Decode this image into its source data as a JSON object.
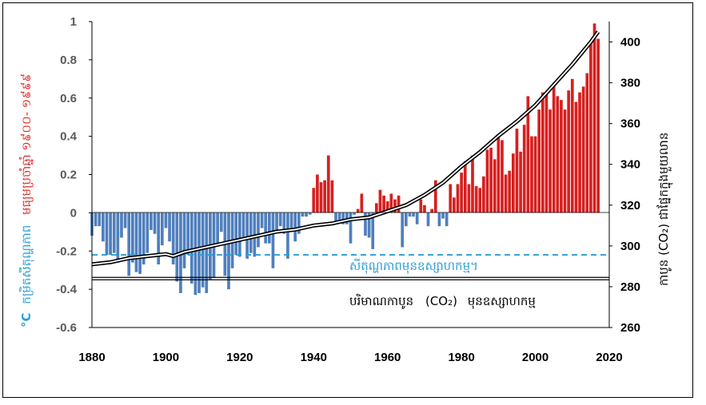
{
  "chart_data": {
    "type": "bar",
    "colors": {
      "warm": "#d62020",
      "cool": "#4f7fbd",
      "co2": "#000000",
      "pre_industrial_temp": "#2a9fd6"
    },
    "x_ticks": [
      "1880",
      "1900",
      "1920",
      "1940",
      "1960",
      "1980",
      "2000",
      "2020"
    ],
    "xlim": [
      1880,
      2020
    ],
    "y_left": {
      "label_part1": "°C",
      "label_part2": "កម្រិតសីតុណ្ហភាព",
      "label_part3": "មធ្យមប្រចាំឆ្នាំ ១៩០០- ១៩៩៩",
      "ylim": [
        -0.6,
        1.0
      ],
      "ticks": [
        "-0.6",
        "-0.4",
        "-0.2",
        "0",
        "0.2",
        "0.4",
        "0.6",
        "0.8",
        "1"
      ]
    },
    "y_right": {
      "label": "កាបូន (CO₂) ជាផ្នែកក្នុងមួយលាន",
      "ylim": [
        260,
        410
      ],
      "ticks": [
        "260",
        "280",
        "300",
        "320",
        "340",
        "360",
        "380",
        "400"
      ]
    },
    "series": [
      {
        "name": "temperature_anomaly",
        "years": [
          1880,
          1881,
          1882,
          1883,
          1884,
          1885,
          1886,
          1887,
          1888,
          1889,
          1890,
          1891,
          1892,
          1893,
          1894,
          1895,
          1896,
          1897,
          1898,
          1899,
          1900,
          1901,
          1902,
          1903,
          1904,
          1905,
          1906,
          1907,
          1908,
          1909,
          1910,
          1911,
          1912,
          1913,
          1914,
          1915,
          1916,
          1917,
          1918,
          1919,
          1920,
          1921,
          1922,
          1923,
          1924,
          1925,
          1926,
          1927,
          1928,
          1929,
          1930,
          1931,
          1932,
          1933,
          1934,
          1935,
          1936,
          1937,
          1938,
          1939,
          1940,
          1941,
          1942,
          1943,
          1944,
          1945,
          1946,
          1947,
          1948,
          1949,
          1950,
          1951,
          1952,
          1953,
          1954,
          1955,
          1956,
          1957,
          1958,
          1959,
          1960,
          1961,
          1962,
          1963,
          1964,
          1965,
          1966,
          1967,
          1968,
          1969,
          1970,
          1971,
          1972,
          1973,
          1974,
          1975,
          1976,
          1977,
          1978,
          1979,
          1980,
          1981,
          1982,
          1983,
          1984,
          1985,
          1986,
          1987,
          1988,
          1989,
          1990,
          1991,
          1992,
          1993,
          1994,
          1995,
          1996,
          1997,
          1998,
          1999,
          2000,
          2001,
          2002,
          2003,
          2004,
          2005,
          2006,
          2007,
          2008,
          2009,
          2010,
          2011,
          2012,
          2013,
          2014,
          2015,
          2016,
          2017
        ],
        "values": [
          -0.12,
          -0.07,
          -0.07,
          -0.15,
          -0.22,
          -0.22,
          -0.21,
          -0.26,
          -0.13,
          -0.08,
          -0.33,
          -0.26,
          -0.31,
          -0.32,
          -0.27,
          -0.21,
          -0.09,
          -0.11,
          -0.27,
          -0.17,
          -0.08,
          -0.15,
          -0.27,
          -0.36,
          -0.42,
          -0.29,
          -0.22,
          -0.37,
          -0.43,
          -0.42,
          -0.39,
          -0.42,
          -0.35,
          -0.34,
          -0.16,
          -0.1,
          -0.33,
          -0.4,
          -0.29,
          -0.22,
          -0.23,
          -0.14,
          -0.24,
          -0.21,
          -0.23,
          -0.18,
          -0.08,
          -0.16,
          -0.16,
          -0.29,
          -0.09,
          -0.07,
          -0.11,
          -0.24,
          -0.1,
          -0.15,
          -0.11,
          -0.02,
          -0.02,
          -0.01,
          0.13,
          0.2,
          0.16,
          0.17,
          0.3,
          0.17,
          -0.05,
          -0.05,
          -0.06,
          -0.06,
          -0.16,
          -0.01,
          0.02,
          0.1,
          -0.12,
          -0.13,
          -0.19,
          0.05,
          0.12,
          0.09,
          0.06,
          0.1,
          0.07,
          0.09,
          -0.18,
          -0.07,
          -0.02,
          -0.02,
          -0.06,
          0.07,
          0.04,
          -0.07,
          0.02,
          0.17,
          -0.07,
          -0.03,
          -0.07,
          0.15,
          0.08,
          0.15,
          0.21,
          0.27,
          0.15,
          0.3,
          0.14,
          0.13,
          0.19,
          0.33,
          0.34,
          0.28,
          0.4,
          0.38,
          0.2,
          0.22,
          0.31,
          0.44,
          0.32,
          0.46,
          0.61,
          0.4,
          0.4,
          0.54,
          0.63,
          0.62,
          0.54,
          0.68,
          0.61,
          0.59,
          0.54,
          0.64,
          0.7,
          0.58,
          0.63,
          0.66,
          0.73,
          0.89,
          0.99,
          0.91
        ]
      },
      {
        "name": "co2_ppm",
        "points": [
          [
            1880,
            291
          ],
          [
            1885,
            292
          ],
          [
            1890,
            294
          ],
          [
            1895,
            295
          ],
          [
            1900,
            296
          ],
          [
            1902,
            295
          ],
          [
            1905,
            297
          ],
          [
            1910,
            299
          ],
          [
            1915,
            301
          ],
          [
            1920,
            303
          ],
          [
            1925,
            305
          ],
          [
            1930,
            307
          ],
          [
            1935,
            308
          ],
          [
            1940,
            310
          ],
          [
            1945,
            311
          ],
          [
            1950,
            313
          ],
          [
            1955,
            314
          ],
          [
            1960,
            317
          ],
          [
            1965,
            320
          ],
          [
            1970,
            325
          ],
          [
            1975,
            331
          ],
          [
            1980,
            339
          ],
          [
            1985,
            346
          ],
          [
            1990,
            354
          ],
          [
            1995,
            361
          ],
          [
            2000,
            369
          ],
          [
            2005,
            379
          ],
          [
            2010,
            389
          ],
          [
            2015,
            400
          ],
          [
            2017,
            405
          ]
        ]
      },
      {
        "name": "pre_industrial_temp",
        "value": -0.22,
        "label": "សីតុណ្ហភាពមុនឧស្សាហកម្ម។"
      },
      {
        "name": "pre_industrial_co2",
        "value": 284,
        "label_part1": "បរិមាណកាបូន",
        "label_part2": "(CO₂)",
        "label_part3": "មុនឧស្សាហកម្ម"
      }
    ]
  }
}
